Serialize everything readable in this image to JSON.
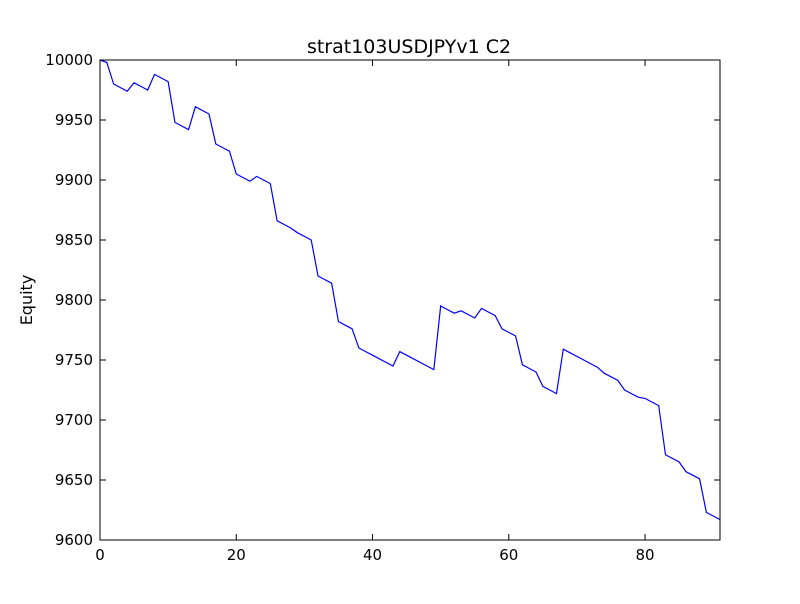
{
  "chart_data": {
    "type": "line",
    "title": "strat103USDJPYv1 C2",
    "xlabel": "",
    "ylabel": "Equity",
    "xlim": [
      0,
      91
    ],
    "ylim": [
      9600,
      10000
    ],
    "xticks": [
      0,
      20,
      40,
      60,
      80
    ],
    "yticks": [
      9600,
      9650,
      9700,
      9750,
      9800,
      9850,
      9900,
      9950,
      10000
    ],
    "grid": false,
    "line_color": "#0000ff",
    "series": [
      {
        "x": [
          0,
          1,
          2,
          3,
          4,
          5,
          6,
          7,
          8,
          9,
          10,
          11,
          12,
          13,
          14,
          15,
          16,
          17,
          18,
          19,
          20,
          21,
          22,
          23,
          24,
          25,
          26,
          27,
          28,
          29,
          30,
          31,
          32,
          33,
          34,
          35,
          36,
          37,
          38,
          39,
          40,
          41,
          42,
          43,
          44,
          45,
          46,
          47,
          48,
          49,
          50,
          51,
          52,
          53,
          54,
          55,
          56,
          57,
          58,
          59,
          60,
          61,
          62,
          63,
          64,
          65,
          66,
          67,
          68,
          69,
          70,
          71,
          72,
          73,
          74,
          75,
          76,
          77,
          78,
          79,
          80,
          81,
          82,
          83,
          84,
          85,
          86,
          87,
          88,
          89,
          90,
          91
        ],
        "values": [
          10000,
          9998,
          9980,
          9977,
          9974,
          9981,
          9978,
          9975,
          9988,
          9985,
          9982,
          9948,
          9945,
          9942,
          9961,
          9958,
          9955,
          9930,
          9927,
          9924,
          9905,
          9902,
          9899,
          9903,
          9900,
          9897,
          9866,
          9863,
          9860,
          9856,
          9853,
          9850,
          9820,
          9817,
          9814,
          9782,
          9779,
          9776,
          9760,
          9757,
          9754,
          9751,
          9748,
          9745,
          9757,
          9754,
          9751,
          9748,
          9745,
          9742,
          9795,
          9792,
          9789,
          9791,
          9788,
          9785,
          9793,
          9790,
          9787,
          9776,
          9773,
          9770,
          9746,
          9743,
          9740,
          9728,
          9725,
          9722,
          9759,
          9756,
          9753,
          9750,
          9747,
          9744,
          9739,
          9736,
          9733,
          9725,
          9722,
          9719,
          9718,
          9715,
          9712,
          9671,
          9668,
          9665,
          9657,
          9654,
          9651,
          9623,
          9620,
          9617
        ]
      }
    ]
  }
}
